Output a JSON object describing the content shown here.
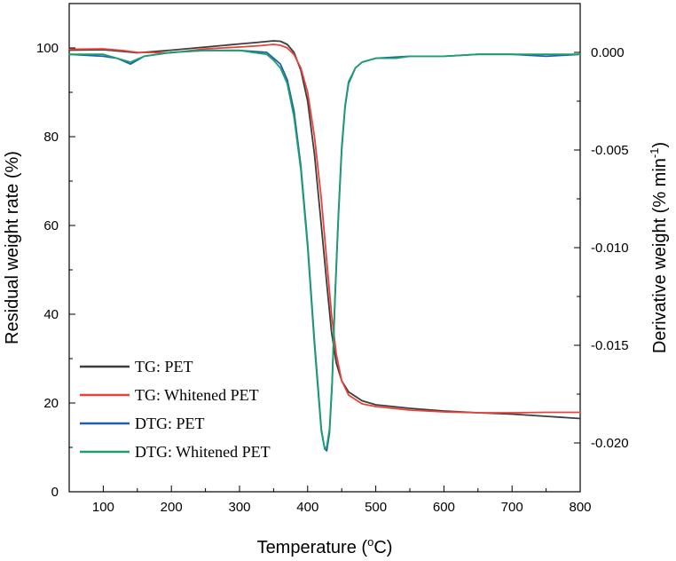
{
  "chart_data": {
    "type": "line",
    "x_axis": {
      "label": "Temperature",
      "unit_open": "(",
      "unit_sup": "o",
      "unit_rest": "C)",
      "range": [
        50,
        800
      ],
      "ticks": [
        100,
        200,
        300,
        400,
        500,
        600,
        700,
        800
      ],
      "tick_labels": [
        "100",
        "200",
        "300",
        "400",
        "500",
        "600",
        "700",
        "800"
      ]
    },
    "y_axis_left": {
      "label": "Residual weight rate (%)",
      "range": [
        0,
        110
      ],
      "ticks": [
        0,
        20,
        40,
        60,
        80,
        100
      ],
      "tick_labels": [
        "0",
        "20",
        "40",
        "60",
        "80",
        "100"
      ]
    },
    "y_axis_right": {
      "label_main": "Derivative weight (% min",
      "label_sup": "-1",
      "label_close": ")",
      "range": [
        -0.0225,
        0.0025
      ],
      "ticks": [
        0,
        -0.005,
        -0.01,
        -0.015,
        -0.02
      ],
      "tick_labels": [
        "0.000",
        "-0.005",
        "-0.010",
        "-0.015",
        "-0.020"
      ]
    },
    "series": [
      {
        "name": "TG: PET",
        "axis": "left",
        "color": "#3d3d3d",
        "points": [
          [
            50,
            99.5
          ],
          [
            100,
            99.6
          ],
          [
            130,
            99.2
          ],
          [
            150,
            98.9
          ],
          [
            200,
            99.5
          ],
          [
            250,
            100.2
          ],
          [
            300,
            100.9
          ],
          [
            330,
            101.3
          ],
          [
            350,
            101.6
          ],
          [
            360,
            101.5
          ],
          [
            370,
            100.8
          ],
          [
            380,
            99.0
          ],
          [
            390,
            95.0
          ],
          [
            400,
            88.0
          ],
          [
            410,
            76.0
          ],
          [
            420,
            60.0
          ],
          [
            428,
            47.0
          ],
          [
            435,
            36.0
          ],
          [
            442,
            29.0
          ],
          [
            450,
            25.0
          ],
          [
            460,
            22.5
          ],
          [
            480,
            20.5
          ],
          [
            500,
            19.6
          ],
          [
            550,
            18.8
          ],
          [
            600,
            18.2
          ],
          [
            650,
            17.8
          ],
          [
            700,
            17.5
          ],
          [
            750,
            17.0
          ],
          [
            800,
            16.5
          ]
        ]
      },
      {
        "name": "TG: Whitened PET",
        "axis": "left",
        "color": "#e8433a",
        "points": [
          [
            50,
            99.7
          ],
          [
            100,
            99.8
          ],
          [
            130,
            99.4
          ],
          [
            150,
            99.0
          ],
          [
            200,
            98.9
          ],
          [
            250,
            99.8
          ],
          [
            300,
            100.2
          ],
          [
            330,
            100.5
          ],
          [
            350,
            100.8
          ],
          [
            360,
            100.6
          ],
          [
            370,
            100.0
          ],
          [
            380,
            98.5
          ],
          [
            390,
            95.5
          ],
          [
            400,
            90.0
          ],
          [
            410,
            80.0
          ],
          [
            420,
            66.0
          ],
          [
            428,
            52.0
          ],
          [
            435,
            40.0
          ],
          [
            442,
            31.0
          ],
          [
            450,
            25.0
          ],
          [
            460,
            21.8
          ],
          [
            480,
            19.8
          ],
          [
            500,
            19.2
          ],
          [
            550,
            18.4
          ],
          [
            600,
            18.0
          ],
          [
            650,
            17.8
          ],
          [
            700,
            17.8
          ],
          [
            750,
            17.9
          ],
          [
            800,
            17.9
          ]
        ]
      },
      {
        "name": "DTG: PET",
        "axis": "right",
        "color": "#1f5fb0",
        "points": [
          [
            50,
            -0.0001
          ],
          [
            100,
            -0.0002
          ],
          [
            120,
            -0.0003
          ],
          [
            140,
            -0.0006
          ],
          [
            160,
            -0.0002
          ],
          [
            200,
            0.0
          ],
          [
            250,
            0.0001
          ],
          [
            300,
            0.0001
          ],
          [
            340,
            0.0
          ],
          [
            350,
            -0.0003
          ],
          [
            360,
            -0.0006
          ],
          [
            370,
            -0.0014
          ],
          [
            380,
            -0.003
          ],
          [
            390,
            -0.0058
          ],
          [
            400,
            -0.0098
          ],
          [
            410,
            -0.0148
          ],
          [
            415,
            -0.017
          ],
          [
            420,
            -0.0193
          ],
          [
            425,
            -0.0203
          ],
          [
            428,
            -0.0204
          ],
          [
            432,
            -0.0195
          ],
          [
            436,
            -0.017
          ],
          [
            440,
            -0.0128
          ],
          [
            445,
            -0.0085
          ],
          [
            450,
            -0.005
          ],
          [
            455,
            -0.0028
          ],
          [
            460,
            -0.0016
          ],
          [
            470,
            -0.0008
          ],
          [
            480,
            -0.0005
          ],
          [
            500,
            -0.0003
          ],
          [
            550,
            -0.0002
          ],
          [
            600,
            -0.0002
          ],
          [
            650,
            -0.0001
          ],
          [
            700,
            -0.0001
          ],
          [
            750,
            -0.0002
          ],
          [
            800,
            -0.0001
          ]
        ]
      },
      {
        "name": "DTG: Whitened PET",
        "axis": "right",
        "color": "#1d9e6c",
        "points": [
          [
            50,
            -0.0001
          ],
          [
            100,
            -0.0001
          ],
          [
            120,
            -0.0003
          ],
          [
            140,
            -0.0005
          ],
          [
            160,
            -0.0002
          ],
          [
            200,
            0.0
          ],
          [
            250,
            0.0001
          ],
          [
            300,
            0.0001
          ],
          [
            340,
            -0.0001
          ],
          [
            350,
            -0.0004
          ],
          [
            360,
            -0.0008
          ],
          [
            370,
            -0.0016
          ],
          [
            380,
            -0.0033
          ],
          [
            390,
            -0.006
          ],
          [
            400,
            -0.01
          ],
          [
            410,
            -0.015
          ],
          [
            415,
            -0.0172
          ],
          [
            420,
            -0.0194
          ],
          [
            425,
            -0.0203
          ],
          [
            428,
            -0.0202
          ],
          [
            432,
            -0.0193
          ],
          [
            436,
            -0.0168
          ],
          [
            440,
            -0.0126
          ],
          [
            445,
            -0.0083
          ],
          [
            450,
            -0.0048
          ],
          [
            455,
            -0.0027
          ],
          [
            460,
            -0.0015
          ],
          [
            470,
            -0.0008
          ],
          [
            480,
            -0.0005
          ],
          [
            500,
            -0.0003
          ],
          [
            530,
            -0.0003
          ],
          [
            550,
            -0.0002
          ],
          [
            600,
            -0.0002
          ],
          [
            650,
            -0.0001
          ],
          [
            700,
            -0.0001
          ],
          [
            750,
            -0.0001
          ],
          [
            800,
            -0.0001
          ]
        ]
      }
    ],
    "legend": {
      "position": "bottom-left",
      "entries": [
        "TG: PET",
        "TG: Whitened PET",
        "DTG: PET",
        "DTG: Whitened PET"
      ]
    },
    "grid": false
  }
}
